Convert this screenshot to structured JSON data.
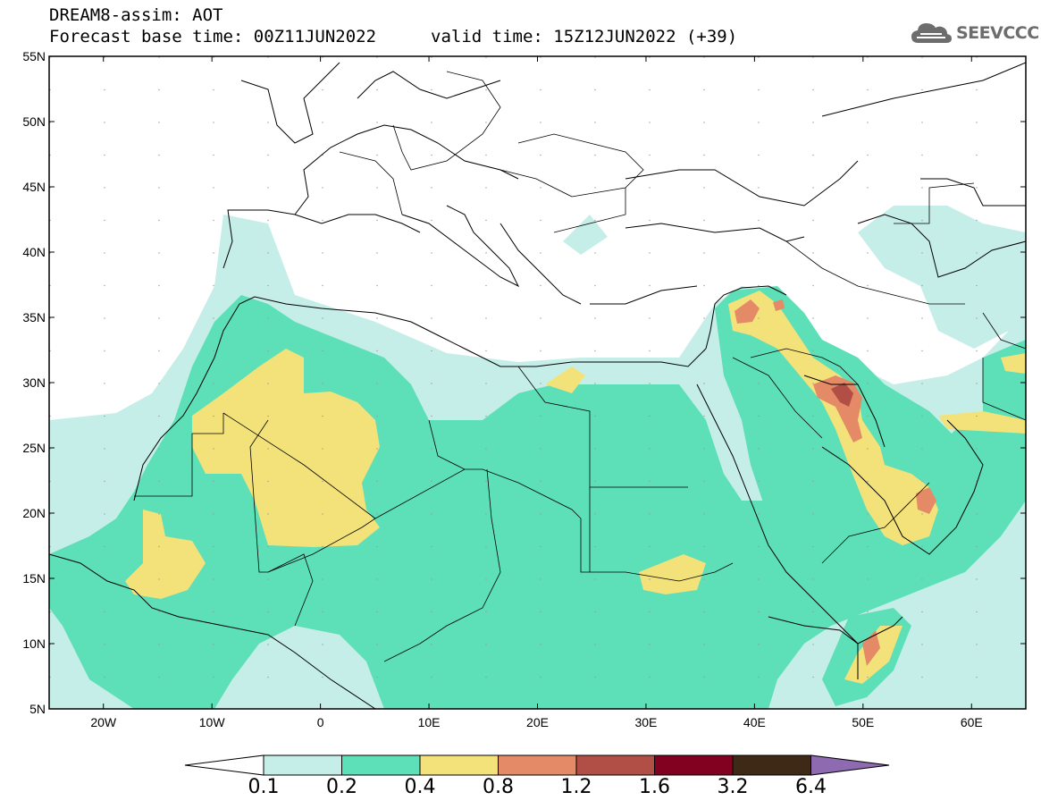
{
  "header": {
    "title_line1": "DREAM8-assim: AOT",
    "base_time": "Forecast base time: 00Z11JUN2022",
    "valid_time": "valid time: 15Z12JUN2022 (+39)"
  },
  "logo": {
    "text": "SEEVCCC",
    "icon": "cloud-icon"
  },
  "map": {
    "lon_range": [
      -25,
      65
    ],
    "lat_range": [
      5,
      55
    ],
    "lat_labels": [
      "55N",
      "50N",
      "45N",
      "40N",
      "35N",
      "30N",
      "25N",
      "20N",
      "15N",
      "10N",
      "5N"
    ],
    "lon_labels": [
      "20W",
      "10W",
      "0",
      "10E",
      "20E",
      "30E",
      "40E",
      "50E",
      "60E"
    ],
    "colors": {
      "0.1-0.2": "#c6eee8",
      "0.2-0.4": "#5ddfb8",
      "0.4-0.8": "#f3e27a",
      "0.8-1.2": "#e58a66",
      "1.2-1.6": "#b14f47",
      "1.6-3.2": "#820020",
      "3.2-6.4": "#3d2916",
      "above": "#8e6bb0"
    }
  },
  "colorbar": {
    "labels": [
      "0.1",
      "0.2",
      "0.4",
      "0.8",
      "1.2",
      "1.6",
      "3.2",
      "6.4"
    ],
    "colors": [
      "#c6eee8",
      "#5ddfb8",
      "#f3e27a",
      "#e58a66",
      "#b14f47",
      "#820020",
      "#3d2916"
    ],
    "under_color": "#ffffff",
    "over_color": "#8e6bb0"
  }
}
